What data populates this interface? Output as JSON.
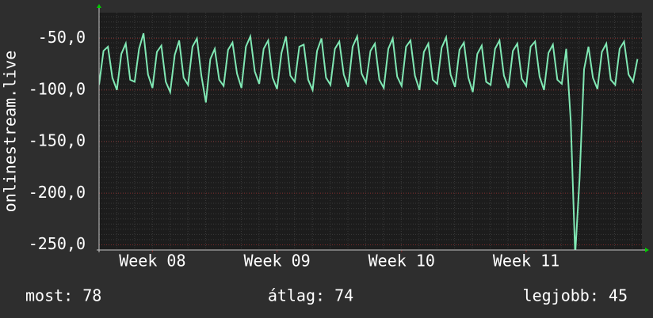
{
  "chart_data": {
    "type": "line",
    "y_label": "onlinestream.live",
    "x": [
      0,
      0.25,
      0.5,
      0.75,
      1,
      1.25,
      1.5,
      1.75,
      2,
      2.25,
      2.5,
      2.75,
      3,
      3.25,
      3.5,
      3.75,
      4,
      4.25,
      4.5,
      4.75,
      5,
      5.25,
      5.5,
      5.75,
      6,
      6.25,
      6.5,
      6.75,
      7,
      7.25,
      7.5,
      7.75,
      8,
      8.25,
      8.5,
      8.75,
      9,
      9.25,
      9.5,
      9.75,
      10,
      10.25,
      10.5,
      10.75,
      11,
      11.25,
      11.5,
      11.75,
      12,
      12.25,
      12.5,
      12.75,
      13,
      13.25,
      13.5,
      13.75,
      14,
      14.25,
      14.5,
      14.75,
      15,
      15.25,
      15.5,
      15.75,
      16,
      16.25,
      16.5,
      16.75,
      17,
      17.25,
      17.5,
      17.75,
      18,
      18.25,
      18.5,
      18.75,
      19,
      19.25,
      19.5,
      19.75,
      20,
      20.25,
      20.5,
      20.75,
      21,
      21.25,
      21.5,
      21.75,
      22,
      22.25,
      22.5,
      22.75,
      23,
      23.25,
      23.5,
      23.75,
      24,
      24.25,
      24.5,
      24.75,
      25,
      25.25,
      25.5,
      25.75,
      26,
      26.25,
      26.5,
      26.75,
      27,
      27.25,
      27.5,
      27.75,
      28,
      28.25,
      28.5,
      28.75,
      29,
      29.25,
      29.5,
      29.75,
      30,
      30.25
    ],
    "series": [
      {
        "name": "onlinestream.live",
        "color": "#80e8b4",
        "values": [
          -95,
          -62,
          -58,
          -88,
          -100,
          -65,
          -55,
          -90,
          -92,
          -60,
          -45,
          -85,
          -98,
          -63,
          -57,
          -92,
          -102,
          -66,
          -52,
          -88,
          -95,
          -58,
          -50,
          -86,
          -112,
          -70,
          -60,
          -90,
          -96,
          -61,
          -54,
          -84,
          -98,
          -58,
          -48,
          -82,
          -94,
          -60,
          -52,
          -88,
          -99,
          -64,
          -48,
          -86,
          -92,
          -58,
          -56,
          -90,
          -100,
          -62,
          -50,
          -88,
          -95,
          -60,
          -53,
          -85,
          -97,
          -58,
          -48,
          -84,
          -93,
          -62,
          -55,
          -90,
          -98,
          -60,
          -50,
          -87,
          -96,
          -58,
          -52,
          -86,
          -100,
          -63,
          -55,
          -90,
          -94,
          -59,
          -49,
          -85,
          -97,
          -61,
          -54,
          -88,
          -102,
          -65,
          -57,
          -92,
          -95,
          -60,
          -52,
          -86,
          -98,
          -62,
          -55,
          -89,
          -96,
          -58,
          -53,
          -87,
          -100,
          -64,
          -56,
          -90,
          -94,
          -60,
          -130,
          -260,
          -185,
          -80,
          -58,
          -88,
          -99,
          -63,
          -55,
          -90,
          -95,
          -60,
          -53,
          -85,
          -92,
          -70
        ]
      }
    ],
    "xlim": [
      0,
      30.5
    ],
    "xticks": [
      {
        "value": 3,
        "label": "Week 08"
      },
      {
        "value": 10,
        "label": "Week 09"
      },
      {
        "value": 17,
        "label": "Week 10"
      },
      {
        "value": 24,
        "label": "Week 11"
      }
    ],
    "ylim": [
      -255,
      -25
    ],
    "yticks": [
      {
        "value": -50,
        "label": "-50,0"
      },
      {
        "value": -100,
        "label": "-100,0"
      },
      {
        "value": -150,
        "label": "-150,0"
      },
      {
        "value": -200,
        "label": "-200,0"
      },
      {
        "value": -250,
        "label": "-250,0"
      }
    ],
    "grid": true,
    "footer": [
      "most: 78",
      "átlag: 74",
      "legjobb: 45"
    ]
  }
}
